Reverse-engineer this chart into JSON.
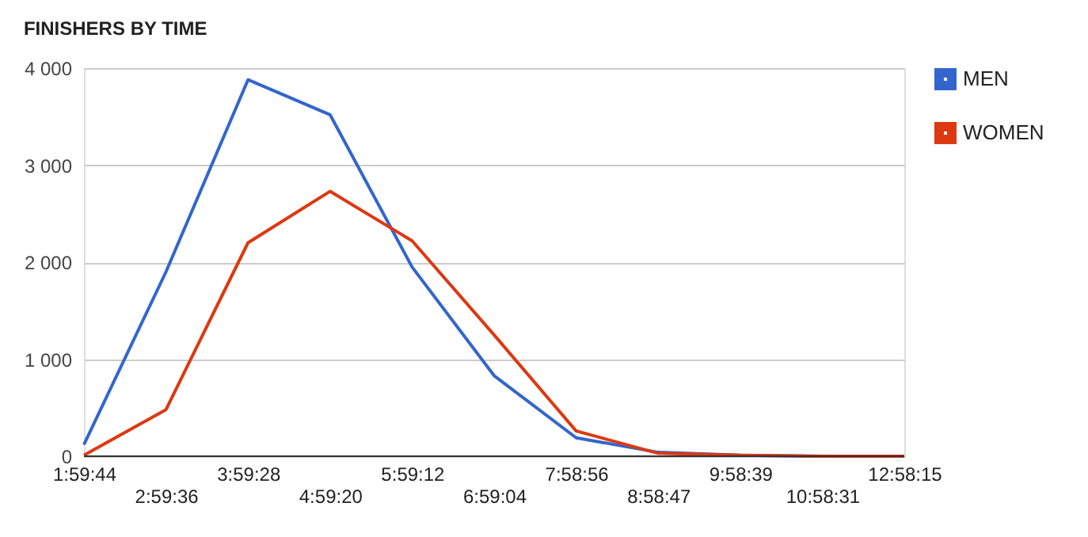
{
  "chart_data": {
    "type": "line",
    "title": "FINISHERS BY TIME",
    "categories": [
      "1:59:44",
      "2:59:36",
      "3:59:28",
      "4:59:20",
      "5:59:12",
      "6:59:04",
      "7:58:56",
      "8:58:47",
      "9:58:39",
      "10:58:31",
      "12:58:15"
    ],
    "series": [
      {
        "name": "MEN",
        "color": "#3366cc",
        "values": [
          120,
          1900,
          3880,
          3520,
          1950,
          830,
          190,
          40,
          10,
          0,
          0
        ]
      },
      {
        "name": "WOMEN",
        "color": "#dc3912",
        "values": [
          10,
          480,
          2200,
          2730,
          2220,
          1250,
          260,
          30,
          10,
          0,
          0
        ]
      }
    ],
    "ylim": [
      0,
      4000
    ],
    "yticks": [
      0,
      {
        "value": 1000,
        "label": "1 000"
      },
      {
        "value": 2000,
        "label": "2 000"
      },
      {
        "value": 3000,
        "label": "3 000"
      },
      {
        "value": 4000,
        "label": "4 000"
      }
    ],
    "grid": "y",
    "legend": "top right",
    "marker": "none",
    "line_style": "solid"
  }
}
